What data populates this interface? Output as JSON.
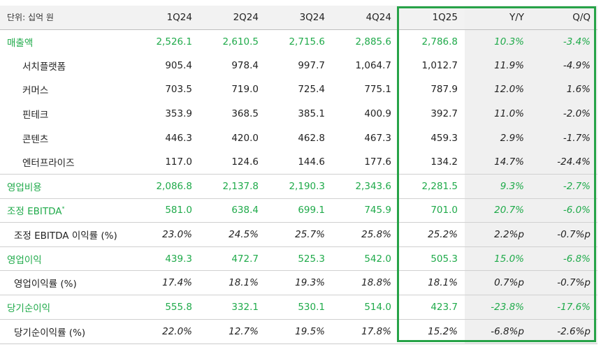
{
  "header": {
    "unit_label": "단위: 십억 원",
    "columns": [
      "1Q24",
      "2Q24",
      "3Q24",
      "4Q24",
      "1Q25",
      "Y/Y",
      "Q/Q"
    ]
  },
  "rows": [
    {
      "label": "매출액",
      "values": [
        "2,526.1",
        "2,610.5",
        "2,715.6",
        "2,885.6",
        "2,786.8",
        "10.3%",
        "-3.4%"
      ]
    },
    {
      "label": "서치플랫폼",
      "values": [
        "905.4",
        "978.4",
        "997.7",
        "1,064.7",
        "1,012.7",
        "11.9%",
        "-4.9%"
      ]
    },
    {
      "label": "커머스",
      "values": [
        "703.5",
        "719.0",
        "725.4",
        "775.1",
        "787.9",
        "12.0%",
        "1.6%"
      ]
    },
    {
      "label": "핀테크",
      "values": [
        "353.9",
        "368.5",
        "385.1",
        "400.9",
        "392.7",
        "11.0%",
        "-2.0%"
      ]
    },
    {
      "label": "콘텐츠",
      "values": [
        "446.3",
        "420.0",
        "462.8",
        "467.3",
        "459.3",
        "2.9%",
        "-1.7%"
      ]
    },
    {
      "label": "엔터프라이즈",
      "values": [
        "117.0",
        "124.6",
        "144.6",
        "177.6",
        "134.2",
        "14.7%",
        "-24.4%"
      ]
    },
    {
      "label": "영업비용",
      "values": [
        "2,086.8",
        "2,137.8",
        "2,190.3",
        "2,343.6",
        "2,281.5",
        "9.3%",
        "-2.7%"
      ]
    },
    {
      "label": "조정 EBITDA",
      "sup": "*",
      "values": [
        "581.0",
        "638.4",
        "699.1",
        "745.9",
        "701.0",
        "20.7%",
        "-6.0%"
      ]
    },
    {
      "label": "조정 EBITDA 이익률 (%)",
      "values": [
        "23.0%",
        "24.5%",
        "25.7%",
        "25.8%",
        "25.2%",
        "2.2%p",
        "-0.7%p"
      ]
    },
    {
      "label": "영업이익",
      "values": [
        "439.3",
        "472.7",
        "525.3",
        "542.0",
        "505.3",
        "15.0%",
        "-6.8%"
      ]
    },
    {
      "label": "영업이익률 (%)",
      "values": [
        "17.4%",
        "18.1%",
        "19.3%",
        "18.8%",
        "18.1%",
        "0.7%p",
        "-0.7%p"
      ]
    },
    {
      "label": "당기순이익",
      "values": [
        "555.8",
        "332.1",
        "530.1",
        "514.0",
        "423.7",
        "-23.8%",
        "-17.6%"
      ]
    },
    {
      "label": "당기순이익률 (%)",
      "values": [
        "22.0%",
        "12.7%",
        "19.5%",
        "17.8%",
        "15.2%",
        "-6.8%p",
        "-2.6%p"
      ]
    }
  ],
  "colors": {
    "accent_green": "#1faa4a",
    "highlight_border": "#27a348",
    "shaded_bg": "#f0f0f0"
  }
}
